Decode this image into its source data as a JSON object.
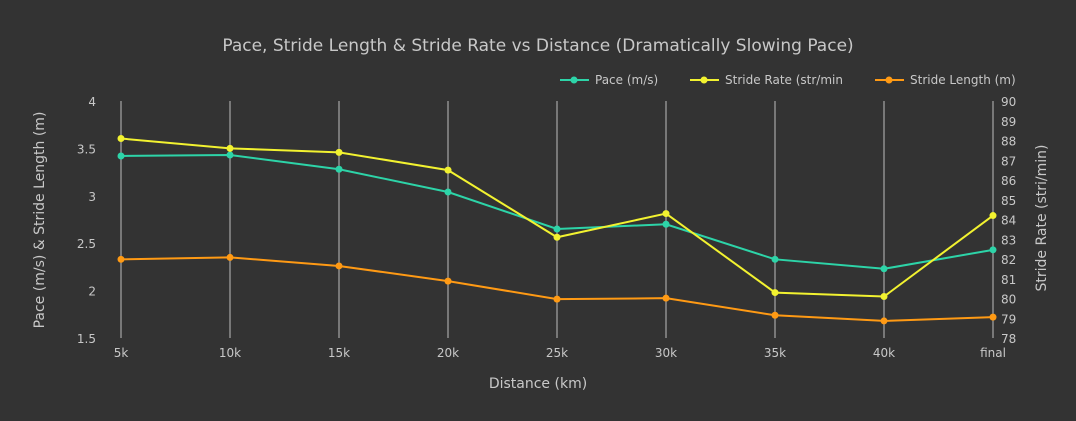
{
  "chart_data": {
    "type": "line",
    "title": "Pace, Stride Length & Stride Rate vs Distance (Dramatically Slowing Pace)",
    "xlabel": "Distance (km)",
    "ylabel": "Pace (m/s) & Stride Length (m)",
    "y2label": "Stride Rate (stri/min)",
    "categories": [
      "5k",
      "10k",
      "15k",
      "20k",
      "25k",
      "30k",
      "35k",
      "40k",
      "final"
    ],
    "ylim": [
      1.5,
      4
    ],
    "y2lim": [
      78,
      90
    ],
    "yticks": [
      "1.5",
      "2",
      "2.5",
      "3",
      "3.5",
      "4"
    ],
    "y2ticks": [
      "78",
      "79",
      "80",
      "81",
      "82",
      "83",
      "84",
      "85",
      "86",
      "87",
      "88",
      "89",
      "90"
    ],
    "grid": "vertical",
    "legend_position": "top-right",
    "series": [
      {
        "name": "Pace (m/s)",
        "axis": "left",
        "color": "#2dd4a8",
        "values": [
          3.42,
          3.43,
          3.28,
          3.04,
          2.65,
          2.7,
          2.33,
          2.23,
          2.43
        ]
      },
      {
        "name": "Stride Rate (str/min",
        "axis": "right",
        "color": "#f2f230",
        "values": [
          88.1,
          87.6,
          87.4,
          86.5,
          83.1,
          84.3,
          80.3,
          80.1,
          84.2
        ]
      },
      {
        "name": "Stride Length (m)",
        "axis": "left",
        "color": "#ff9a14",
        "values": [
          2.33,
          2.35,
          2.26,
          2.1,
          1.91,
          1.92,
          1.74,
          1.68,
          1.72
        ]
      }
    ]
  }
}
